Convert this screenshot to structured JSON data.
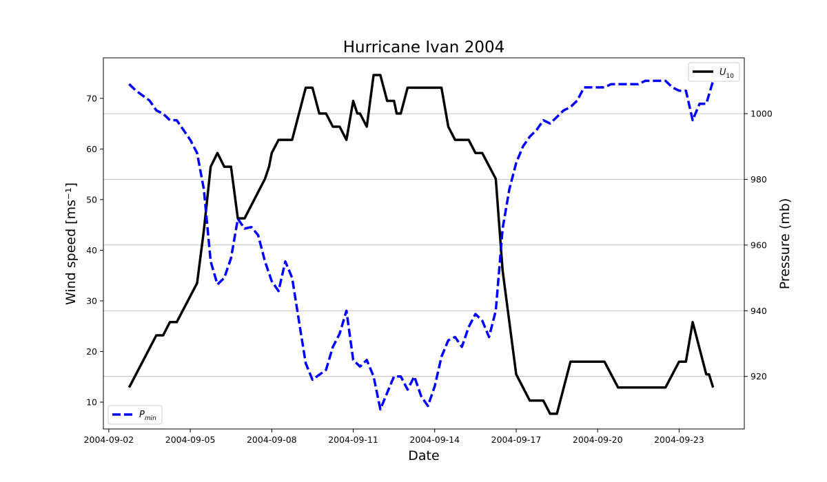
{
  "chart_data": {
    "type": "line",
    "title": "Hurricane Ivan 2004",
    "xlabel": "Date",
    "ylabel_left": "Wind speed [ms⁻¹]",
    "ylabel_right": "Pressure (mb)",
    "x_ticks": [
      "2004-09-02",
      "2004-09-05",
      "2004-09-08",
      "2004-09-11",
      "2004-09-14",
      "2004-09-17",
      "2004-09-20",
      "2004-09-23"
    ],
    "y_left_ticks": [
      10,
      20,
      30,
      40,
      50,
      60,
      70
    ],
    "y_right_ticks": [
      920,
      940,
      960,
      980,
      1000
    ],
    "ylim_left": [
      4.7,
      78
    ],
    "ylim_right": [
      904,
      1017
    ],
    "xlim_days": [
      1.8,
      25.4
    ],
    "grid": "horizontal lines at right-axis ticks",
    "colors": {
      "wind": "#000000",
      "pressure": "#0000ff"
    },
    "series": [
      {
        "name": "U10",
        "axis": "left",
        "style": "solid",
        "points": [
          [
            2.75,
            12.9
          ],
          [
            3.75,
            23.2
          ],
          [
            4.0,
            23.2
          ],
          [
            4.25,
            25.8
          ],
          [
            4.5,
            25.8
          ],
          [
            5.25,
            33.5
          ],
          [
            5.5,
            43.9
          ],
          [
            5.75,
            56.5
          ],
          [
            6.0,
            59.2
          ],
          [
            6.25,
            56.5
          ],
          [
            6.5,
            56.5
          ],
          [
            6.75,
            46.3
          ],
          [
            7.0,
            46.3
          ],
          [
            7.75,
            54.1
          ],
          [
            7.9,
            56.5
          ],
          [
            8.0,
            59.2
          ],
          [
            8.25,
            61.8
          ],
          [
            8.75,
            61.8
          ],
          [
            9.25,
            72.1
          ],
          [
            9.5,
            72.1
          ],
          [
            9.75,
            67.0
          ],
          [
            10.0,
            67.0
          ],
          [
            10.25,
            64.4
          ],
          [
            10.5,
            64.4
          ],
          [
            10.75,
            61.8
          ],
          [
            11.0,
            69.5
          ],
          [
            11.15,
            67.0
          ],
          [
            11.25,
            67.0
          ],
          [
            11.5,
            64.4
          ],
          [
            11.75,
            74.6
          ],
          [
            12.0,
            74.6
          ],
          [
            12.25,
            69.5
          ],
          [
            12.5,
            69.5
          ],
          [
            12.6,
            67.0
          ],
          [
            12.75,
            67.0
          ],
          [
            13.0,
            72.1
          ],
          [
            14.25,
            72.1
          ],
          [
            14.5,
            64.4
          ],
          [
            14.75,
            61.8
          ],
          [
            15.25,
            61.8
          ],
          [
            15.5,
            59.2
          ],
          [
            15.75,
            59.2
          ],
          [
            16.25,
            54.1
          ],
          [
            16.5,
            36.0
          ],
          [
            17.0,
            15.5
          ],
          [
            17.5,
            10.3
          ],
          [
            18.0,
            10.3
          ],
          [
            18.25,
            7.7
          ],
          [
            18.5,
            7.7
          ],
          [
            19.0,
            18.0
          ],
          [
            20.25,
            18.0
          ],
          [
            20.75,
            12.9
          ],
          [
            22.5,
            12.9
          ],
          [
            23.0,
            18.0
          ],
          [
            23.25,
            18.0
          ],
          [
            23.5,
            25.8
          ],
          [
            24.0,
            15.5
          ],
          [
            24.1,
            15.5
          ],
          [
            24.25,
            12.9
          ]
        ]
      },
      {
        "name": "Pmin",
        "axis": "right",
        "style": "dashed",
        "points": [
          [
            2.75,
            1009
          ],
          [
            3.0,
            1007
          ],
          [
            3.5,
            1004
          ],
          [
            3.75,
            1001
          ],
          [
            4.0,
            1000
          ],
          [
            4.25,
            998
          ],
          [
            4.5,
            998
          ],
          [
            4.75,
            995
          ],
          [
            5.0,
            992
          ],
          [
            5.25,
            988
          ],
          [
            5.5,
            977
          ],
          [
            5.75,
            955
          ],
          [
            6.0,
            948
          ],
          [
            6.25,
            950
          ],
          [
            6.5,
            956
          ],
          [
            6.75,
            968
          ],
          [
            7.0,
            965
          ],
          [
            7.25,
            965.5
          ],
          [
            7.5,
            963
          ],
          [
            7.75,
            955
          ],
          [
            8.0,
            949
          ],
          [
            8.25,
            946
          ],
          [
            8.5,
            955
          ],
          [
            8.75,
            950
          ],
          [
            9.0,
            937
          ],
          [
            9.25,
            924
          ],
          [
            9.5,
            919
          ],
          [
            10.0,
            922
          ],
          [
            10.25,
            929
          ],
          [
            10.5,
            933
          ],
          [
            10.75,
            940
          ],
          [
            11.0,
            925
          ],
          [
            11.25,
            923
          ],
          [
            11.5,
            925
          ],
          [
            11.75,
            920
          ],
          [
            12.0,
            910
          ],
          [
            12.25,
            915
          ],
          [
            12.5,
            920
          ],
          [
            12.75,
            920
          ],
          [
            13.0,
            916
          ],
          [
            13.25,
            920
          ],
          [
            13.5,
            914
          ],
          [
            13.75,
            911
          ],
          [
            14.0,
            917
          ],
          [
            14.25,
            926
          ],
          [
            14.5,
            931
          ],
          [
            14.75,
            932
          ],
          [
            15.0,
            929
          ],
          [
            15.25,
            935
          ],
          [
            15.5,
            939
          ],
          [
            15.75,
            937
          ],
          [
            16.0,
            932
          ],
          [
            16.25,
            940
          ],
          [
            16.5,
            965
          ],
          [
            16.75,
            977
          ],
          [
            17.0,
            985
          ],
          [
            17.25,
            990
          ],
          [
            17.5,
            993
          ],
          [
            17.75,
            995
          ],
          [
            18.0,
            998
          ],
          [
            18.25,
            997
          ],
          [
            18.5,
            999
          ],
          [
            18.75,
            1001
          ],
          [
            19.0,
            1002
          ],
          [
            19.25,
            1004
          ],
          [
            19.5,
            1008
          ],
          [
            20.0,
            1008
          ],
          [
            20.25,
            1008
          ],
          [
            20.5,
            1009
          ],
          [
            21.5,
            1009
          ],
          [
            21.75,
            1010
          ],
          [
            22.5,
            1010
          ],
          [
            22.75,
            1008
          ],
          [
            23.0,
            1007
          ],
          [
            23.25,
            1007
          ],
          [
            23.5,
            998
          ],
          [
            23.75,
            1003
          ],
          [
            24.0,
            1003
          ],
          [
            24.25,
            1010
          ]
        ]
      }
    ]
  }
}
